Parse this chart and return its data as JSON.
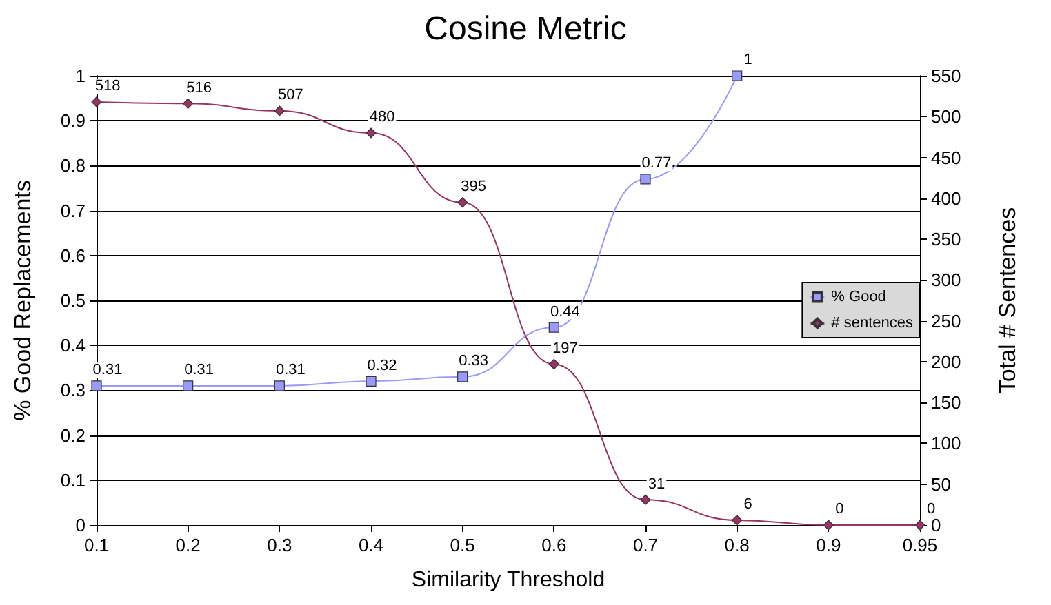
{
  "chart_data": {
    "type": "line",
    "title": "Cosine Metric",
    "xlabel": "Similarity Threshold",
    "ylabel": "% Good Replacements",
    "y2label": "Total # Sentences",
    "categories": [
      "0.1",
      "0.2",
      "0.3",
      "0.4",
      "0.5",
      "0.6",
      "0.7",
      "0.8",
      "0.9",
      "0.95"
    ],
    "series": [
      {
        "name": "% Good",
        "color": "#9999ff",
        "marker": "square",
        "values": [
          0.31,
          0.31,
          0.31,
          0.32,
          0.33,
          0.44,
          0.77,
          1,
          null,
          null
        ]
      },
      {
        "name": "# sentences",
        "color": "#993366",
        "marker": "diamond",
        "axis": "y2",
        "values": [
          518,
          516,
          507,
          480,
          395,
          197,
          31,
          6,
          0,
          0
        ]
      }
    ],
    "ylim": [
      0,
      1
    ],
    "yticks": [
      0,
      0.1,
      0.2,
      0.3,
      0.4,
      0.5,
      0.6,
      0.7,
      0.8,
      0.9,
      1
    ],
    "y2lim": [
      0,
      550
    ],
    "y2ticks": [
      0,
      50,
      100,
      150,
      200,
      250,
      300,
      350,
      400,
      450,
      500,
      550
    ],
    "grid": "y",
    "legend": "right",
    "data_labels": true
  }
}
